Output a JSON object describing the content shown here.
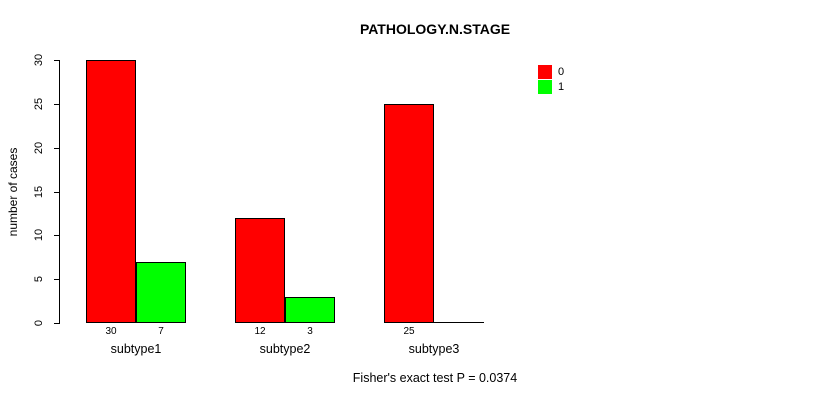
{
  "title": "PATHOLOGY.N.STAGE",
  "footnote": "Fisher's exact test P = 0.0374",
  "colors": {
    "series0": "#FF0000",
    "series1": "#00FF00",
    "axis": "#000000",
    "background": "#FFFFFF"
  },
  "legend": {
    "position": "top-right",
    "entries": [
      {
        "label": "0",
        "color": "#FF0000"
      },
      {
        "label": "1",
        "color": "#00FF00"
      }
    ]
  },
  "chart_data": {
    "type": "bar",
    "grouped": true,
    "categories": [
      "subtype1",
      "subtype2",
      "subtype3"
    ],
    "series": [
      {
        "name": "0",
        "color": "#FF0000",
        "values": [
          30,
          12,
          25
        ]
      },
      {
        "name": "1",
        "color": "#00FF00",
        "values": [
          7,
          3,
          0
        ]
      }
    ],
    "bar_value_labels_shown": [
      [
        30,
        7
      ],
      [
        12,
        3
      ],
      [
        25
      ]
    ],
    "zero_value_labels_hidden": true,
    "title": "PATHOLOGY.N.STAGE",
    "xlabel": "",
    "ylabel": "number of cases",
    "ylim": [
      0,
      30
    ],
    "yticks": [
      0,
      5,
      10,
      15,
      20,
      25,
      30
    ],
    "grid": false,
    "legend_position": "top-right",
    "annotation": "Fisher's exact test P = 0.0374"
  }
}
